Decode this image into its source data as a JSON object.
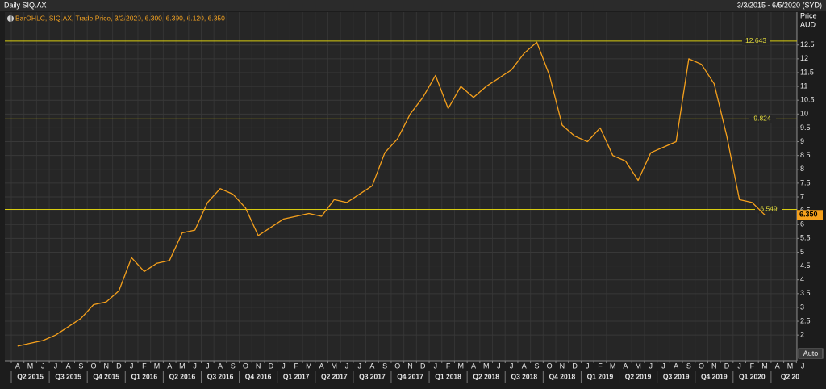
{
  "chart_data": {
    "type": "line",
    "title": "Daily SIQ.AX",
    "date_range": "3/3/2015 - 6/5/2020 (SYD)",
    "legend_text": "BarOHLC, SIQ.AX, Trade Price, 3/2/2020, 6.300, 6.390, 6.120, 6.350",
    "y_axis_label": "Price",
    "y_axis_unit": "AUD",
    "button": "Auto",
    "categories": [
      "A",
      "M",
      "J",
      "J",
      "A",
      "S",
      "O",
      "N",
      "D",
      "J",
      "F",
      "M",
      "A",
      "M",
      "J",
      "J",
      "A",
      "S",
      "O",
      "N",
      "D",
      "J",
      "F",
      "M",
      "A",
      "M",
      "J",
      "J",
      "A",
      "S",
      "O",
      "N",
      "D",
      "J",
      "F",
      "M",
      "A",
      "M",
      "J",
      "J",
      "A",
      "S",
      "O",
      "N",
      "D",
      "J",
      "F",
      "M",
      "A",
      "M",
      "J",
      "J",
      "A",
      "S",
      "O",
      "N",
      "D",
      "J",
      "F",
      "M",
      "A",
      "M",
      "J"
    ],
    "quarters": [
      "Q2 2015",
      "Q3 2015",
      "Q4 2015",
      "Q1 2016",
      "Q2 2016",
      "Q3 2016",
      "Q4 2016",
      "Q1 2017",
      "Q2 2017",
      "Q3 2017",
      "Q4 2017",
      "Q1 2018",
      "Q2 2018",
      "Q3 2018",
      "Q4 2018",
      "Q1 2019",
      "Q2 2019",
      "Q3 2019",
      "Q4 2019",
      "Q1 2020",
      "Q2 20"
    ],
    "series": [
      {
        "name": "SIQ.AX",
        "color": "#f5a01c",
        "values": [
          1.6,
          1.7,
          1.8,
          2.0,
          2.3,
          2.6,
          3.1,
          3.2,
          3.6,
          4.8,
          4.3,
          4.6,
          4.7,
          5.7,
          5.8,
          6.8,
          7.3,
          7.1,
          6.6,
          5.6,
          5.9,
          6.2,
          6.3,
          6.4,
          6.3,
          6.9,
          6.8,
          7.1,
          7.4,
          8.6,
          9.1,
          10.0,
          10.6,
          11.4,
          10.2,
          11.0,
          10.6,
          11.0,
          11.3,
          11.6,
          12.2,
          12.6,
          11.4,
          9.6,
          9.2,
          9.0,
          9.5,
          8.5,
          8.3,
          7.6,
          8.6,
          8.8,
          9.0,
          12.0,
          11.8,
          11.1,
          9.2,
          6.9,
          6.8,
          6.35,
          null,
          null,
          null
        ]
      }
    ],
    "levels": [
      12.643,
      9.824,
      6.549
    ],
    "level_color": "#d8cc10",
    "last_price": {
      "value": 6.35,
      "label": "6.350"
    },
    "ylim": [
      1.07,
      13.69
    ],
    "yticks": [
      2,
      2.5,
      3,
      3.5,
      4,
      4.5,
      5,
      5.5,
      6,
      6.5,
      7,
      7.5,
      8,
      8.5,
      9,
      9.5,
      10,
      10.5,
      11,
      11.5,
      12,
      12.5
    ],
    "grid": true
  }
}
